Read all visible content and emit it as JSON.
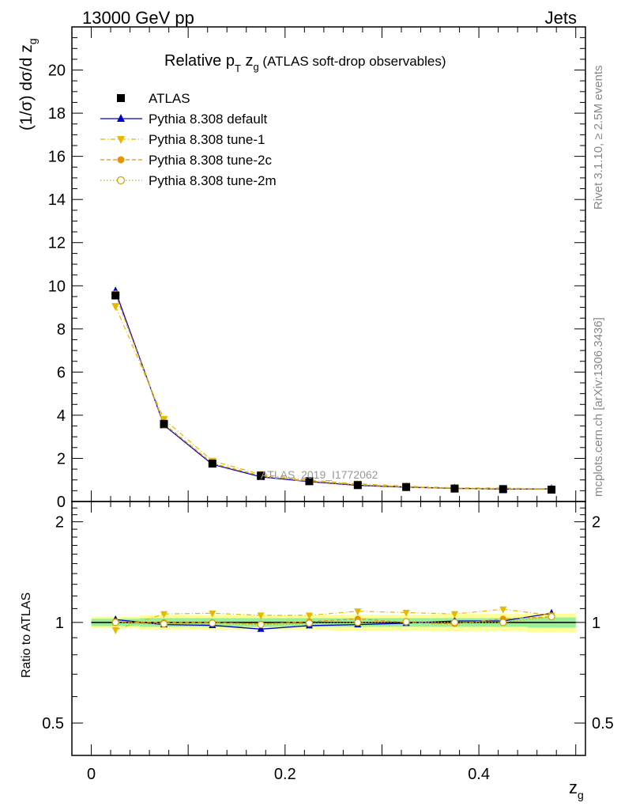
{
  "header": {
    "left": "13000 GeV pp",
    "right": "Jets"
  },
  "side_text": {
    "rivet": "Rivet 3.1.10, ≥ 2.5M events",
    "mcplots": "mcplots.cern.ch [arXiv:1306.3436]"
  },
  "colors": {
    "atlas": "#000000",
    "default": "#0000cc",
    "tune1": "#e6b800",
    "tune2c": "#e69500",
    "tune2m": "#d4a000",
    "band_inner": "#99ee99",
    "band_outer": "#ffff99"
  },
  "chart_data": {
    "type": "line",
    "title": "Relative pT zg (ATLAS soft-drop observables)",
    "title_parts": {
      "main": "Relative p",
      "sub_t": "T",
      "z": " z",
      "sub_g": "g",
      "rest": " (ATLAS soft-drop observables)"
    },
    "xlabel": "z",
    "xlabel_sub": "g",
    "ylabel": "(1/σ) dσ/d z",
    "ylabel_sub": "g",
    "ratio_ylabel": "Ratio to ATLAS",
    "watermark": "ATLAS_2019_I1772062",
    "xlim": [
      -0.02,
      0.51
    ],
    "ylim": [
      0,
      22
    ],
    "ratio_ylim": [
      0.4,
      2.3
    ],
    "ratio_scale": "log",
    "x_ticks": [
      0,
      0.2,
      0.4
    ],
    "x_tick_labels": [
      "0",
      "0.2",
      "0.4"
    ],
    "y_ticks": [
      0,
      2,
      4,
      6,
      8,
      10,
      12,
      14,
      16,
      18,
      20
    ],
    "y_tick_labels": [
      "0",
      "2",
      "4",
      "6",
      "8",
      "10",
      "12",
      "14",
      "16",
      "18",
      "20"
    ],
    "ratio_ticks": [
      0.5,
      1,
      2
    ],
    "ratio_tick_labels": [
      "0.5",
      "1",
      "2"
    ],
    "legend_position": "top-left",
    "x": [
      0.025,
      0.075,
      0.125,
      0.175,
      0.225,
      0.275,
      0.325,
      0.375,
      0.425,
      0.475
    ],
    "bin_edges": [
      0.0,
      0.05,
      0.1,
      0.15,
      0.2,
      0.25,
      0.3,
      0.35,
      0.4,
      0.45,
      0.5
    ],
    "series": [
      {
        "name": "ATLAS",
        "key": "atlas",
        "marker": "square",
        "values": [
          9.55,
          3.6,
          1.76,
          1.2,
          0.94,
          0.76,
          0.67,
          0.6,
          0.57,
          0.55
        ],
        "ratio": [
          1,
          1,
          1,
          1,
          1,
          1,
          1,
          1,
          1,
          1
        ]
      },
      {
        "name": "Pythia 8.308 default",
        "key": "default",
        "marker": "triangle-up",
        "dash": "solid",
        "values": [
          9.75,
          3.54,
          1.72,
          1.14,
          0.92,
          0.75,
          0.665,
          0.61,
          0.575,
          0.585
        ],
        "ratio": [
          1.02,
          0.985,
          0.98,
          0.955,
          0.978,
          0.985,
          0.995,
          1.01,
          1.01,
          1.065
        ]
      },
      {
        "name": "Pythia 8.308 tune-1",
        "key": "tune1",
        "marker": "triangle-down",
        "dash": "dashdot",
        "values": [
          9.05,
          3.82,
          1.88,
          1.26,
          0.99,
          0.82,
          0.715,
          0.635,
          0.625,
          0.58
        ],
        "ratio": [
          0.95,
          1.06,
          1.065,
          1.05,
          1.05,
          1.08,
          1.07,
          1.06,
          1.095,
          1.05
        ]
      },
      {
        "name": "Pythia 8.308 tune-2c",
        "key": "tune2c",
        "marker": "circle",
        "dash": "dashed",
        "values": [
          9.6,
          3.6,
          1.77,
          1.19,
          0.95,
          0.78,
          0.67,
          0.595,
          0.585,
          0.575
        ],
        "ratio": [
          1.005,
          1.0,
          1.0,
          0.99,
          1.005,
          1.025,
          1.0,
          0.99,
          1.025,
          1.04
        ]
      },
      {
        "name": "Pythia 8.308 tune-2m",
        "key": "tune2m",
        "marker": "open-circle",
        "dash": "dotted",
        "values": [
          9.6,
          3.57,
          1.76,
          1.18,
          0.94,
          0.76,
          0.675,
          0.6,
          0.575,
          0.575
        ],
        "ratio": [
          1.0,
          0.99,
          0.995,
          0.985,
          0.995,
          1.0,
          1.005,
          1.0,
          1.0,
          1.04
        ]
      }
    ],
    "band_inner_halfwidth": [
      0.025,
      0.03,
      0.03,
      0.03,
      0.03,
      0.03,
      0.03,
      0.03,
      0.03,
      0.035
    ],
    "band_outer_halfwidth": [
      0.04,
      0.05,
      0.05,
      0.05,
      0.05,
      0.055,
      0.055,
      0.06,
      0.06,
      0.065
    ]
  }
}
